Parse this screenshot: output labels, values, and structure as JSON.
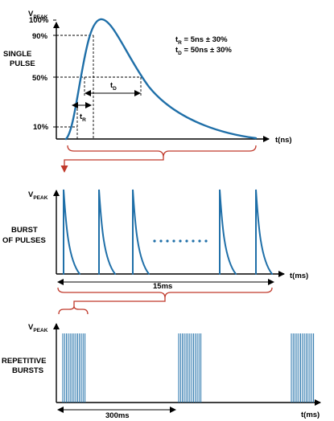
{
  "panel1": {
    "ylabel": "V",
    "ylabel_sub": "PEAK",
    "xlabel": "t(ns)",
    "side_label": [
      "SINGLE",
      "PULSE"
    ],
    "ticks": [
      "100%",
      "90%",
      "50%",
      "10%"
    ],
    "rise_label": "t",
    "rise_sub": "R",
    "decay_label": "t",
    "decay_sub": "D",
    "spec_rise": {
      "main": "t",
      "sub": "R",
      "rest": " = 5ns ± 30%"
    },
    "spec_decay": {
      "main": "t",
      "sub": "D",
      "rest": " = 50ns ± 30%"
    }
  },
  "panel2": {
    "ylabel": "V",
    "ylabel_sub": "PEAK",
    "xlabel": "t(ms)",
    "side_label": [
      "BURST",
      "OF PULSES"
    ],
    "span_label": "15ms"
  },
  "panel3": {
    "ylabel": "V",
    "ylabel_sub": "PEAK",
    "xlabel": "t(ms)",
    "side_label": [
      "REPETITIVE",
      "BURSTS"
    ],
    "span_label": "300ms"
  },
  "colors": {
    "waveform": "#1f6fa8",
    "bracket": "#c0392b",
    "axis": "#000000"
  }
}
